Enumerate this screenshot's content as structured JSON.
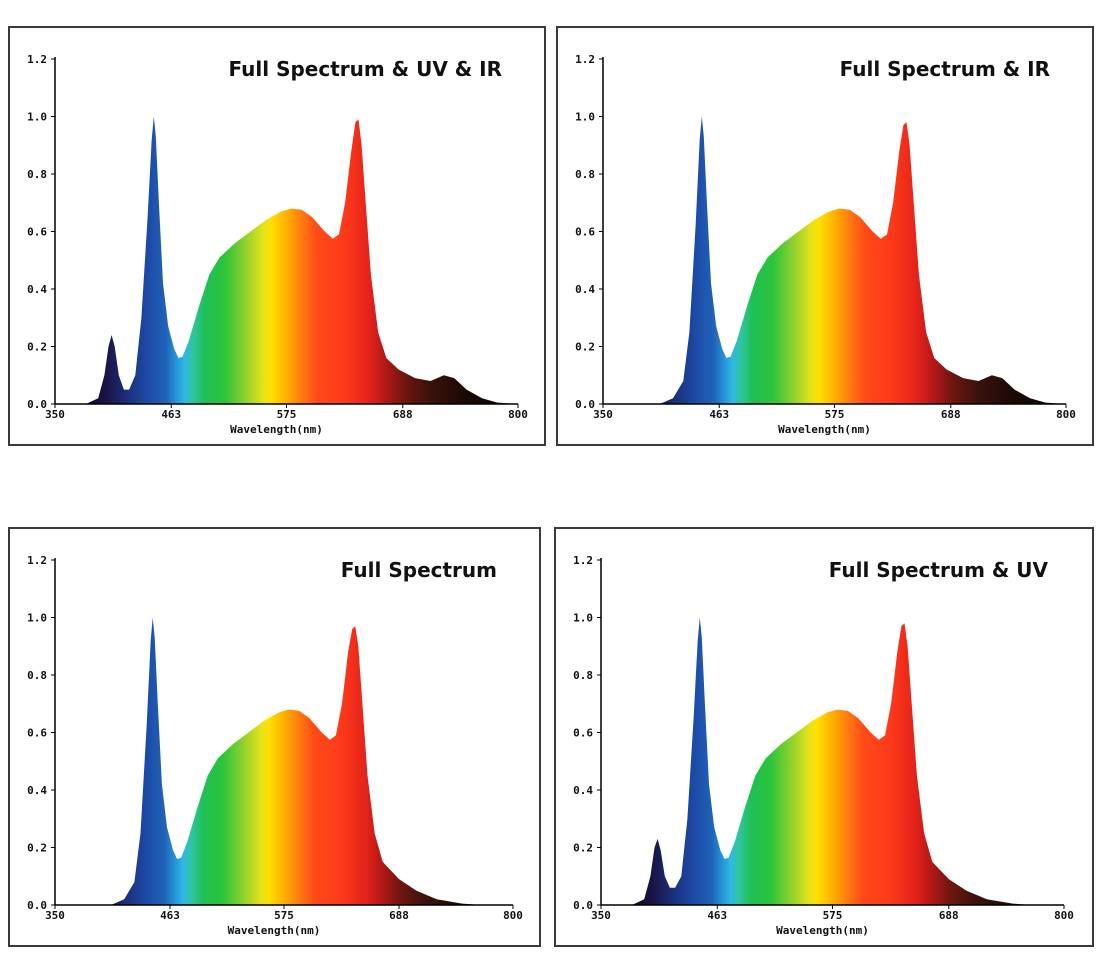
{
  "chart_data": [
    {
      "type": "area",
      "title": "Full Spectrum & UV & IR",
      "xlabel": "Wavelength(nm)",
      "ylabel": "",
      "xlim": [
        350,
        800
      ],
      "ylim": [
        0,
        1.2
      ],
      "xticks": [
        "350",
        "463",
        "575",
        "688",
        "800"
      ],
      "yticks": [
        "0.0",
        "0.2",
        "0.4",
        "0.6",
        "0.8",
        "1.0",
        "1.2"
      ],
      "grid": false,
      "points": [
        [
          350,
          0
        ],
        [
          380,
          0
        ],
        [
          392,
          0.02
        ],
        [
          398,
          0.1
        ],
        [
          402,
          0.2
        ],
        [
          405,
          0.24
        ],
        [
          408,
          0.2
        ],
        [
          412,
          0.1
        ],
        [
          417,
          0.05
        ],
        [
          422,
          0.05
        ],
        [
          428,
          0.1
        ],
        [
          434,
          0.3
        ],
        [
          440,
          0.65
        ],
        [
          444,
          0.92
        ],
        [
          446,
          1.0
        ],
        [
          448,
          0.93
        ],
        [
          451,
          0.7
        ],
        [
          455,
          0.42
        ],
        [
          460,
          0.27
        ],
        [
          466,
          0.19
        ],
        [
          470,
          0.16
        ],
        [
          474,
          0.165
        ],
        [
          480,
          0.22
        ],
        [
          490,
          0.34
        ],
        [
          500,
          0.45
        ],
        [
          510,
          0.51
        ],
        [
          525,
          0.56
        ],
        [
          540,
          0.6
        ],
        [
          555,
          0.64
        ],
        [
          570,
          0.67
        ],
        [
          580,
          0.68
        ],
        [
          590,
          0.675
        ],
        [
          600,
          0.65
        ],
        [
          612,
          0.6
        ],
        [
          620,
          0.575
        ],
        [
          626,
          0.59
        ],
        [
          632,
          0.7
        ],
        [
          638,
          0.88
        ],
        [
          642,
          0.98
        ],
        [
          645,
          0.99
        ],
        [
          648,
          0.9
        ],
        [
          652,
          0.7
        ],
        [
          657,
          0.45
        ],
        [
          664,
          0.25
        ],
        [
          672,
          0.16
        ],
        [
          684,
          0.12
        ],
        [
          700,
          0.09
        ],
        [
          715,
          0.08
        ],
        [
          728,
          0.1
        ],
        [
          738,
          0.09
        ],
        [
          750,
          0.05
        ],
        [
          765,
          0.02
        ],
        [
          780,
          0.005
        ],
        [
          800,
          0
        ]
      ]
    },
    {
      "type": "area",
      "title": "Full Spectrum & IR",
      "xlabel": "Wavelength(nm)",
      "ylabel": "",
      "xlim": [
        350,
        800
      ],
      "ylim": [
        0,
        1.2
      ],
      "xticks": [
        "350",
        "463",
        "575",
        "688",
        "800"
      ],
      "yticks": [
        "0.0",
        "0.2",
        "0.4",
        "0.6",
        "0.8",
        "1.0",
        "1.2"
      ],
      "grid": false,
      "points": [
        [
          350,
          0
        ],
        [
          405,
          0
        ],
        [
          418,
          0.02
        ],
        [
          428,
          0.08
        ],
        [
          434,
          0.25
        ],
        [
          440,
          0.62
        ],
        [
          444,
          0.92
        ],
        [
          446,
          1.0
        ],
        [
          448,
          0.93
        ],
        [
          451,
          0.7
        ],
        [
          455,
          0.42
        ],
        [
          460,
          0.27
        ],
        [
          466,
          0.19
        ],
        [
          470,
          0.16
        ],
        [
          474,
          0.165
        ],
        [
          480,
          0.22
        ],
        [
          490,
          0.34
        ],
        [
          500,
          0.45
        ],
        [
          510,
          0.51
        ],
        [
          525,
          0.56
        ],
        [
          540,
          0.6
        ],
        [
          555,
          0.64
        ],
        [
          570,
          0.67
        ],
        [
          580,
          0.68
        ],
        [
          590,
          0.675
        ],
        [
          600,
          0.65
        ],
        [
          612,
          0.6
        ],
        [
          620,
          0.575
        ],
        [
          626,
          0.59
        ],
        [
          632,
          0.7
        ],
        [
          638,
          0.88
        ],
        [
          642,
          0.97
        ],
        [
          645,
          0.98
        ],
        [
          648,
          0.9
        ],
        [
          652,
          0.7
        ],
        [
          657,
          0.45
        ],
        [
          664,
          0.25
        ],
        [
          672,
          0.16
        ],
        [
          684,
          0.12
        ],
        [
          700,
          0.09
        ],
        [
          715,
          0.08
        ],
        [
          728,
          0.1
        ],
        [
          738,
          0.09
        ],
        [
          750,
          0.05
        ],
        [
          765,
          0.02
        ],
        [
          780,
          0.005
        ],
        [
          800,
          0
        ]
      ]
    },
    {
      "type": "area",
      "title": "Full Spectrum",
      "xlabel": "Wavelength(nm)",
      "ylabel": "",
      "xlim": [
        350,
        800
      ],
      "ylim": [
        0,
        1.2
      ],
      "xticks": [
        "350",
        "463",
        "575",
        "688",
        "800"
      ],
      "yticks": [
        "0.0",
        "0.2",
        "0.4",
        "0.6",
        "0.8",
        "1.0",
        "1.2"
      ],
      "grid": false,
      "points": [
        [
          350,
          0
        ],
        [
          405,
          0
        ],
        [
          418,
          0.02
        ],
        [
          428,
          0.08
        ],
        [
          434,
          0.25
        ],
        [
          440,
          0.62
        ],
        [
          444,
          0.92
        ],
        [
          446,
          1.0
        ],
        [
          448,
          0.93
        ],
        [
          451,
          0.7
        ],
        [
          455,
          0.42
        ],
        [
          460,
          0.27
        ],
        [
          466,
          0.19
        ],
        [
          470,
          0.16
        ],
        [
          474,
          0.165
        ],
        [
          480,
          0.22
        ],
        [
          490,
          0.34
        ],
        [
          500,
          0.45
        ],
        [
          510,
          0.51
        ],
        [
          525,
          0.56
        ],
        [
          540,
          0.6
        ],
        [
          555,
          0.64
        ],
        [
          570,
          0.67
        ],
        [
          580,
          0.68
        ],
        [
          590,
          0.675
        ],
        [
          600,
          0.65
        ],
        [
          612,
          0.6
        ],
        [
          620,
          0.575
        ],
        [
          626,
          0.59
        ],
        [
          632,
          0.7
        ],
        [
          638,
          0.88
        ],
        [
          642,
          0.96
        ],
        [
          645,
          0.97
        ],
        [
          648,
          0.9
        ],
        [
          652,
          0.7
        ],
        [
          657,
          0.45
        ],
        [
          664,
          0.25
        ],
        [
          672,
          0.15
        ],
        [
          688,
          0.09
        ],
        [
          705,
          0.05
        ],
        [
          725,
          0.02
        ],
        [
          750,
          0.005
        ],
        [
          770,
          0
        ],
        [
          800,
          0
        ]
      ]
    },
    {
      "type": "area",
      "title": "Full Spectrum & UV",
      "xlabel": "Wavelength(nm)",
      "ylabel": "",
      "xlim": [
        350,
        800
      ],
      "ylim": [
        0,
        1.2
      ],
      "xticks": [
        "350",
        "463",
        "575",
        "688",
        "800"
      ],
      "yticks": [
        "0.0",
        "0.2",
        "0.4",
        "0.6",
        "0.8",
        "1.0",
        "1.2"
      ],
      "grid": false,
      "points": [
        [
          350,
          0
        ],
        [
          380,
          0
        ],
        [
          392,
          0.02
        ],
        [
          398,
          0.1
        ],
        [
          402,
          0.2
        ],
        [
          405,
          0.23
        ],
        [
          408,
          0.19
        ],
        [
          412,
          0.1
        ],
        [
          417,
          0.06
        ],
        [
          422,
          0.06
        ],
        [
          428,
          0.1
        ],
        [
          434,
          0.3
        ],
        [
          440,
          0.65
        ],
        [
          444,
          0.92
        ],
        [
          446,
          1.0
        ],
        [
          448,
          0.93
        ],
        [
          451,
          0.7
        ],
        [
          455,
          0.42
        ],
        [
          460,
          0.27
        ],
        [
          466,
          0.19
        ],
        [
          470,
          0.16
        ],
        [
          474,
          0.165
        ],
        [
          480,
          0.22
        ],
        [
          490,
          0.34
        ],
        [
          500,
          0.45
        ],
        [
          510,
          0.51
        ],
        [
          525,
          0.56
        ],
        [
          540,
          0.6
        ],
        [
          555,
          0.64
        ],
        [
          570,
          0.67
        ],
        [
          580,
          0.68
        ],
        [
          590,
          0.675
        ],
        [
          600,
          0.65
        ],
        [
          612,
          0.6
        ],
        [
          620,
          0.575
        ],
        [
          626,
          0.59
        ],
        [
          632,
          0.7
        ],
        [
          638,
          0.88
        ],
        [
          642,
          0.97
        ],
        [
          645,
          0.98
        ],
        [
          648,
          0.9
        ],
        [
          652,
          0.7
        ],
        [
          657,
          0.45
        ],
        [
          664,
          0.25
        ],
        [
          672,
          0.15
        ],
        [
          688,
          0.09
        ],
        [
          705,
          0.05
        ],
        [
          725,
          0.02
        ],
        [
          750,
          0.005
        ],
        [
          770,
          0
        ],
        [
          800,
          0
        ]
      ]
    }
  ]
}
